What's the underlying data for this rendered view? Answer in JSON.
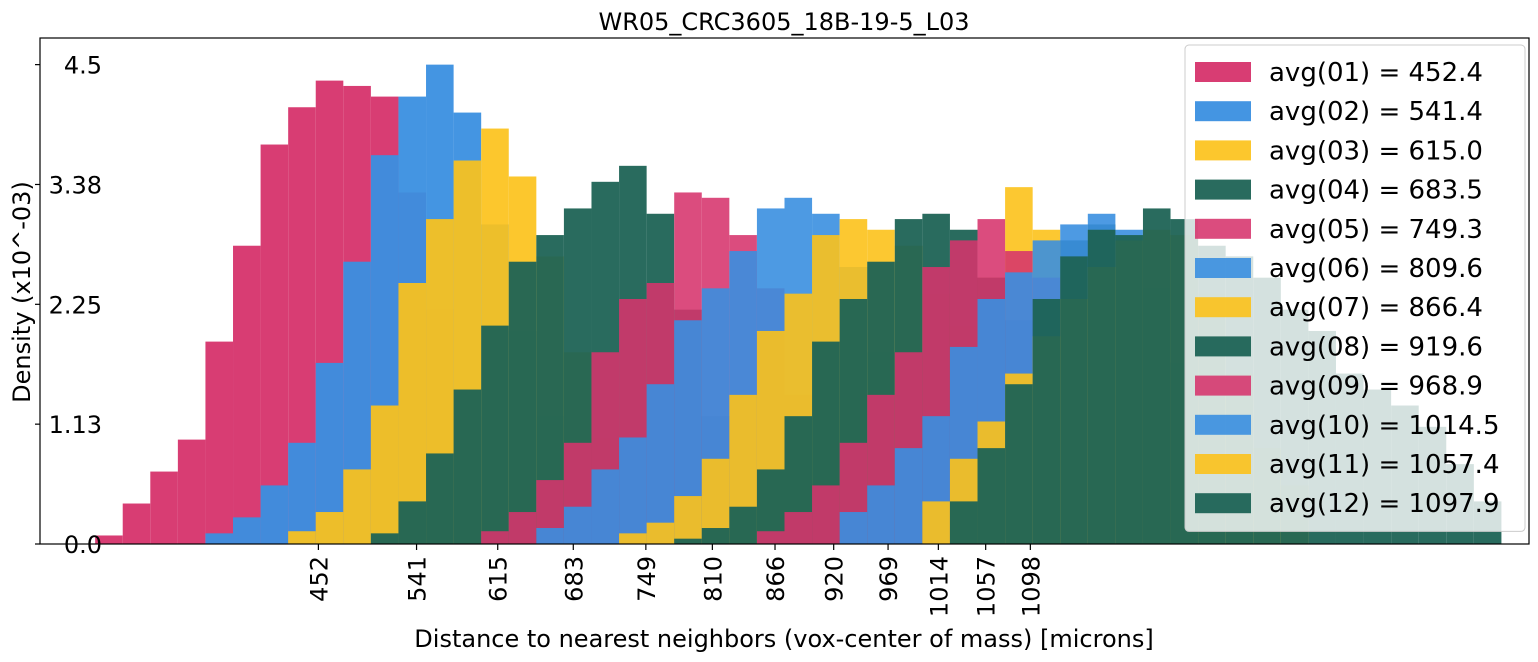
{
  "chart_data": {
    "type": "bar",
    "title": "WR05_CRC3605_18B-19-5_L03",
    "xlabel": "Distance to nearest neighbors (vox-center of mass) [microns]",
    "ylabel": "Density (x10^-03)",
    "xlim": [
      200,
      1550
    ],
    "ylim": [
      0,
      4.75
    ],
    "yticks": [
      {
        "value": 0.0,
        "label": "0.0"
      },
      {
        "value": 1.125,
        "label": "1.13"
      },
      {
        "value": 2.25,
        "label": "2.25"
      },
      {
        "value": 3.375,
        "label": "3.38"
      },
      {
        "value": 4.5,
        "label": "4.5"
      }
    ],
    "xticks": [
      {
        "value": 452.4,
        "label": "452"
      },
      {
        "value": 541.4,
        "label": "541"
      },
      {
        "value": 615.0,
        "label": "615"
      },
      {
        "value": 683.5,
        "label": "683"
      },
      {
        "value": 749.3,
        "label": "749"
      },
      {
        "value": 809.6,
        "label": "810"
      },
      {
        "value": 866.4,
        "label": "866"
      },
      {
        "value": 919.6,
        "label": "920"
      },
      {
        "value": 968.9,
        "label": "969"
      },
      {
        "value": 1014.5,
        "label": "1014"
      },
      {
        "value": 1057.4,
        "label": "1057"
      },
      {
        "value": 1097.9,
        "label": "1098"
      }
    ],
    "bin_width": 25,
    "grid": false,
    "legend_position": "top-right",
    "series": [
      {
        "name": "avg(01) = 452.4",
        "color": "#d6336c",
        "opacity": 0.95,
        "x": [
          262.5,
          287.5,
          312.5,
          337.5,
          362.5,
          387.5,
          412.5,
          437.5,
          462.5,
          487.5,
          512.5,
          537.5,
          562.5,
          587.5,
          612.5,
          637.5
        ],
        "values": [
          0.08,
          0.38,
          0.68,
          0.98,
          1.9,
          2.8,
          3.75,
          4.1,
          4.35,
          4.3,
          4.2,
          3.3,
          2.2,
          1.2,
          0.45,
          0.1
        ]
      },
      {
        "name": "avg(02) = 541.4",
        "color": "#3a8fe0",
        "opacity": 0.95,
        "x": [
          362.5,
          387.5,
          412.5,
          437.5,
          462.5,
          487.5,
          512.5,
          537.5,
          562.5,
          587.5,
          612.5,
          637.5,
          662.5,
          687.5,
          712.5
        ],
        "values": [
          0.1,
          0.25,
          0.55,
          0.95,
          1.7,
          2.65,
          3.65,
          4.2,
          4.5,
          4.05,
          3.0,
          2.0,
          1.2,
          0.5,
          0.15
        ]
      },
      {
        "name": "avg(03) = 615.0",
        "color": "#fcc21b",
        "opacity": 0.92,
        "x": [
          437.5,
          462.5,
          487.5,
          512.5,
          537.5,
          562.5,
          587.5,
          612.5,
          637.5,
          662.5,
          687.5,
          712.5,
          737.5,
          762.5,
          787.5
        ],
        "values": [
          0.12,
          0.3,
          0.7,
          1.3,
          2.45,
          3.05,
          3.6,
          3.9,
          3.45,
          2.7,
          1.8,
          1.0,
          0.45,
          0.15,
          0.05
        ]
      },
      {
        "name": "avg(04) = 683.5",
        "color": "#1d6355",
        "opacity": 0.95,
        "x": [
          512.5,
          537.5,
          562.5,
          587.5,
          612.5,
          637.5,
          662.5,
          687.5,
          712.5,
          737.5,
          762.5,
          787.5,
          812.5,
          837.5,
          862.5
        ],
        "values": [
          0.1,
          0.4,
          0.85,
          1.45,
          2.05,
          2.65,
          2.9,
          3.15,
          3.4,
          3.55,
          3.1,
          2.2,
          1.2,
          0.45,
          0.1
        ]
      },
      {
        "name": "avg(05) = 749.3",
        "color": "#d6336c",
        "opacity": 0.88,
        "x": [
          612.5,
          637.5,
          662.5,
          687.5,
          712.5,
          737.5,
          762.5,
          787.5,
          812.5,
          837.5,
          862.5,
          887.5,
          912.5
        ],
        "values": [
          0.12,
          0.3,
          0.6,
          0.95,
          1.8,
          2.3,
          2.45,
          3.3,
          3.25,
          2.9,
          2.4,
          1.4,
          0.5
        ]
      },
      {
        "name": "avg(06) = 809.6",
        "color": "#3a8fe0",
        "opacity": 0.9,
        "x": [
          662.5,
          687.5,
          712.5,
          737.5,
          762.5,
          787.5,
          812.5,
          837.5,
          862.5,
          887.5,
          912.5,
          937.5,
          962.5,
          987.5
        ],
        "values": [
          0.15,
          0.35,
          0.7,
          1.0,
          1.5,
          2.1,
          2.4,
          2.75,
          3.15,
          3.25,
          3.1,
          2.6,
          1.8,
          1.0
        ]
      },
      {
        "name": "avg(07) = 866.4",
        "color": "#fcc21b",
        "opacity": 0.9,
        "x": [
          737.5,
          762.5,
          787.5,
          812.5,
          837.5,
          862.5,
          887.5,
          912.5,
          937.5,
          962.5,
          987.5,
          1012.5,
          1037.5,
          1062.5,
          1087.5,
          1112.5
        ],
        "values": [
          0.1,
          0.2,
          0.45,
          0.8,
          1.4,
          2.0,
          2.35,
          2.9,
          3.05,
          2.95,
          2.8,
          2.35,
          2.05,
          2.5,
          3.35,
          2.95
        ]
      },
      {
        "name": "avg(08) = 919.6",
        "color": "#1d6355",
        "opacity": 0.95,
        "x": [
          787.5,
          812.5,
          837.5,
          862.5,
          887.5,
          912.5,
          937.5,
          962.5,
          987.5,
          1012.5,
          1037.5,
          1062.5,
          1087.5,
          1112.5,
          1137.5,
          1162.5
        ],
        "values": [
          0.05,
          0.15,
          0.35,
          0.7,
          1.2,
          1.9,
          2.3,
          2.65,
          3.05,
          3.1,
          2.95,
          2.5,
          2.1,
          2.3,
          2.85,
          3.0
        ]
      },
      {
        "name": "avg(09) = 968.9",
        "color": "#d6336c",
        "opacity": 0.88,
        "x": [
          862.5,
          887.5,
          912.5,
          937.5,
          962.5,
          987.5,
          1012.5,
          1037.5,
          1062.5,
          1087.5,
          1112.5,
          1137.5,
          1162.5
        ],
        "values": [
          0.12,
          0.3,
          0.55,
          0.95,
          1.4,
          1.8,
          2.6,
          2.85,
          3.05,
          2.75,
          2.5,
          2.0,
          1.4
        ]
      },
      {
        "name": "avg(10) = 1014.5",
        "color": "#3a8fe0",
        "opacity": 0.9,
        "x": [
          937.5,
          962.5,
          987.5,
          1012.5,
          1037.5,
          1062.5,
          1087.5,
          1112.5,
          1137.5,
          1162.5,
          1187.5,
          1212.5,
          1237.5,
          1262.5,
          1287.5
        ],
        "values": [
          0.3,
          0.55,
          0.9,
          1.2,
          1.85,
          2.3,
          2.55,
          2.85,
          3.0,
          3.1,
          2.95,
          2.4,
          1.7,
          1.15,
          0.7
        ]
      },
      {
        "name": "avg(11) = 1057.4",
        "color": "#fcc21b",
        "opacity": 0.9,
        "x": [
          1012.5,
          1037.5,
          1062.5,
          1087.5,
          1112.5,
          1137.5,
          1162.5,
          1187.5,
          1212.5,
          1237.5,
          1262.5,
          1287.5,
          1312.5,
          1337.5
        ],
        "values": [
          0.4,
          0.8,
          1.15,
          1.6,
          1.95,
          2.3,
          2.6,
          2.85,
          2.95,
          2.9,
          2.35,
          1.6,
          0.9,
          0.55
        ]
      },
      {
        "name": "avg(12) = 1097.9",
        "color": "#1d6355",
        "opacity": 0.95,
        "x": [
          1037.5,
          1062.5,
          1087.5,
          1112.5,
          1137.5,
          1162.5,
          1187.5,
          1212.5,
          1237.5,
          1262.5,
          1287.5,
          1312.5,
          1337.5,
          1362.5,
          1387.5,
          1412.5,
          1437.5,
          1462.5,
          1487.5,
          1512.5
        ],
        "values": [
          0.4,
          0.9,
          1.5,
          2.3,
          2.7,
          2.95,
          2.9,
          3.15,
          3.05,
          2.8,
          2.7,
          2.5,
          2.2,
          2.0,
          1.6,
          1.45,
          1.3,
          1.1,
          0.75,
          0.4
        ]
      }
    ]
  }
}
